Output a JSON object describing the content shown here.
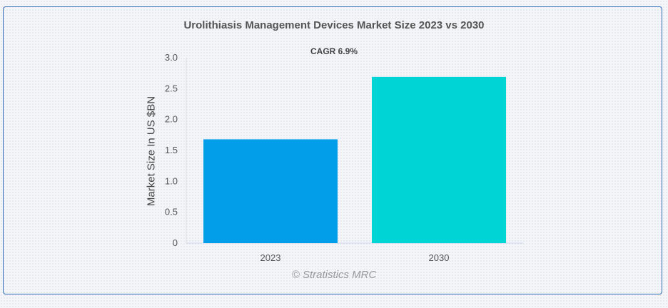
{
  "chart_data": {
    "type": "bar",
    "title": "Urolithiasis Management Devices Market Size 2023 vs 2030",
    "subtitle": "CAGR 6.9%",
    "ylabel": "Market Size In US $BN",
    "xlabel": "",
    "categories": [
      "2023",
      "2030"
    ],
    "values": [
      1.68,
      2.69
    ],
    "ylim": [
      0,
      3.0
    ],
    "yticks": [
      "0",
      "0.5",
      "1.0",
      "1.5",
      "2.0",
      "2.5",
      "3.0"
    ],
    "colors": [
      "#039ee9",
      "#00d4d4"
    ],
    "grid": false,
    "legend": "none"
  },
  "credit": "© Stratistics MRC"
}
